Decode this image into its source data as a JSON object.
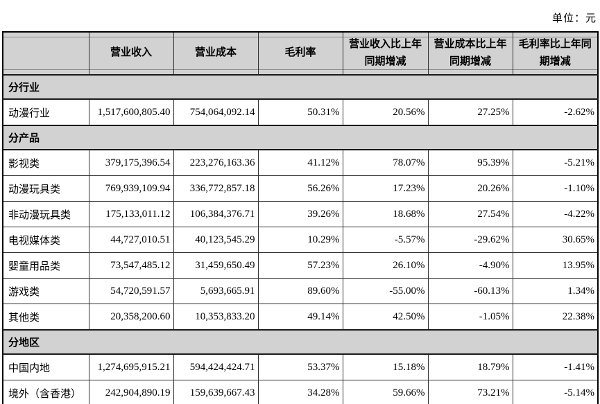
{
  "meta": {
    "unit_label": "单位：元"
  },
  "colors": {
    "header_fill": "#d2d2d2",
    "section_fill": "#d2d2d2",
    "border": "#2f2f2f",
    "outer_border": "#000000",
    "text": "#000000"
  },
  "table": {
    "columns": [
      "",
      "营业收入",
      "营业成本",
      "毛利率",
      "营业收入比上年同期增减",
      "营业成本比上年同期增减",
      "毛利率比上年同期增减"
    ],
    "sections": [
      {
        "label": "分行业",
        "rows": [
          {
            "label": "动漫行业",
            "values": [
              "1,517,600,805.40",
              "754,064,092.14",
              "50.31%",
              "20.56%",
              "27.25%",
              "-2.62%"
            ]
          }
        ]
      },
      {
        "label": "分产品",
        "rows": [
          {
            "label": "影视类",
            "values": [
              "379,175,396.54",
              "223,276,163.36",
              "41.12%",
              "78.07%",
              "95.39%",
              "-5.21%"
            ]
          },
          {
            "label": "动漫玩具类",
            "values": [
              "769,939,109.94",
              "336,772,857.18",
              "56.26%",
              "17.23%",
              "20.26%",
              "-1.10%"
            ]
          },
          {
            "label": "非动漫玩具类",
            "values": [
              "175,133,011.12",
              "106,384,376.71",
              "39.26%",
              "18.68%",
              "27.54%",
              "-4.22%"
            ]
          },
          {
            "label": "电视媒体类",
            "values": [
              "44,727,010.51",
              "40,123,545.29",
              "10.29%",
              "-5.57%",
              "-29.62%",
              "30.65%"
            ]
          },
          {
            "label": "婴童用品类",
            "values": [
              "73,547,485.12",
              "31,459,650.49",
              "57.23%",
              "26.10%",
              "-4.90%",
              "13.95%"
            ]
          },
          {
            "label": "游戏类",
            "values": [
              "54,720,591.57",
              "5,693,665.91",
              "89.60%",
              "-55.00%",
              "-60.13%",
              "1.34%"
            ]
          },
          {
            "label": "其他类",
            "values": [
              "20,358,200.60",
              "10,353,833.20",
              "49.14%",
              "42.50%",
              "-1.05%",
              "22.38%"
            ]
          }
        ]
      },
      {
        "label": "分地区",
        "rows": [
          {
            "label": "中国内地",
            "values": [
              "1,274,695,915.21",
              "594,424,424.71",
              "53.37%",
              "15.18%",
              "18.79%",
              "-1.41%"
            ]
          },
          {
            "label": "境外（含香港）",
            "values": [
              "242,904,890.19",
              "159,639,667.43",
              "34.28%",
              "59.66%",
              "73.21%",
              "-5.14%"
            ]
          }
        ]
      }
    ]
  }
}
